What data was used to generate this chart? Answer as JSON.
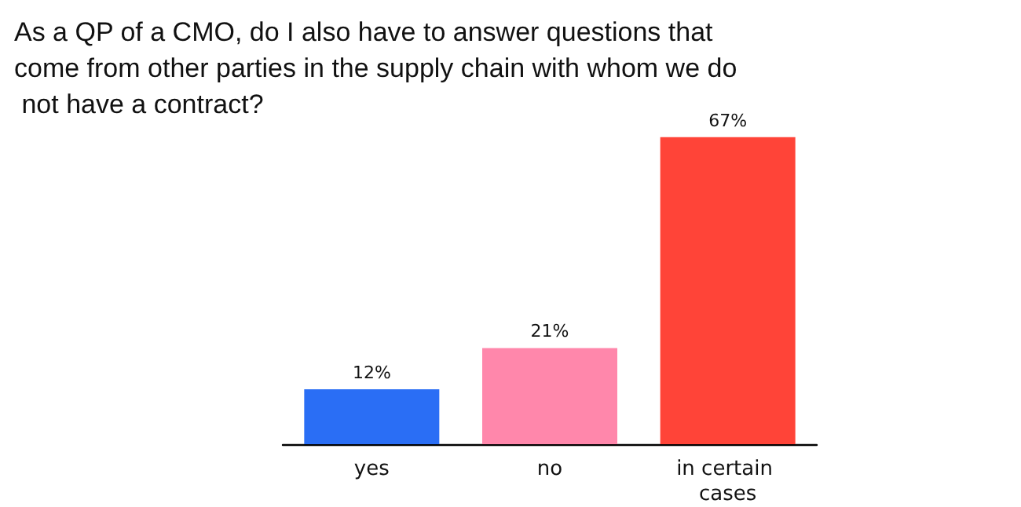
{
  "chart_data": {
    "type": "bar",
    "title": "As a QP of a CMO, do I also have to answer questions that come from other parties in the supply chain with whom we do not have a contract?",
    "categories": [
      "yes",
      "no",
      "in certain cases"
    ],
    "values": [
      12,
      21,
      67
    ],
    "colors": [
      "#2a6ef5",
      "#ff87ab",
      "#ff4438"
    ],
    "value_labels": [
      "12%",
      "21%",
      "67%"
    ]
  }
}
